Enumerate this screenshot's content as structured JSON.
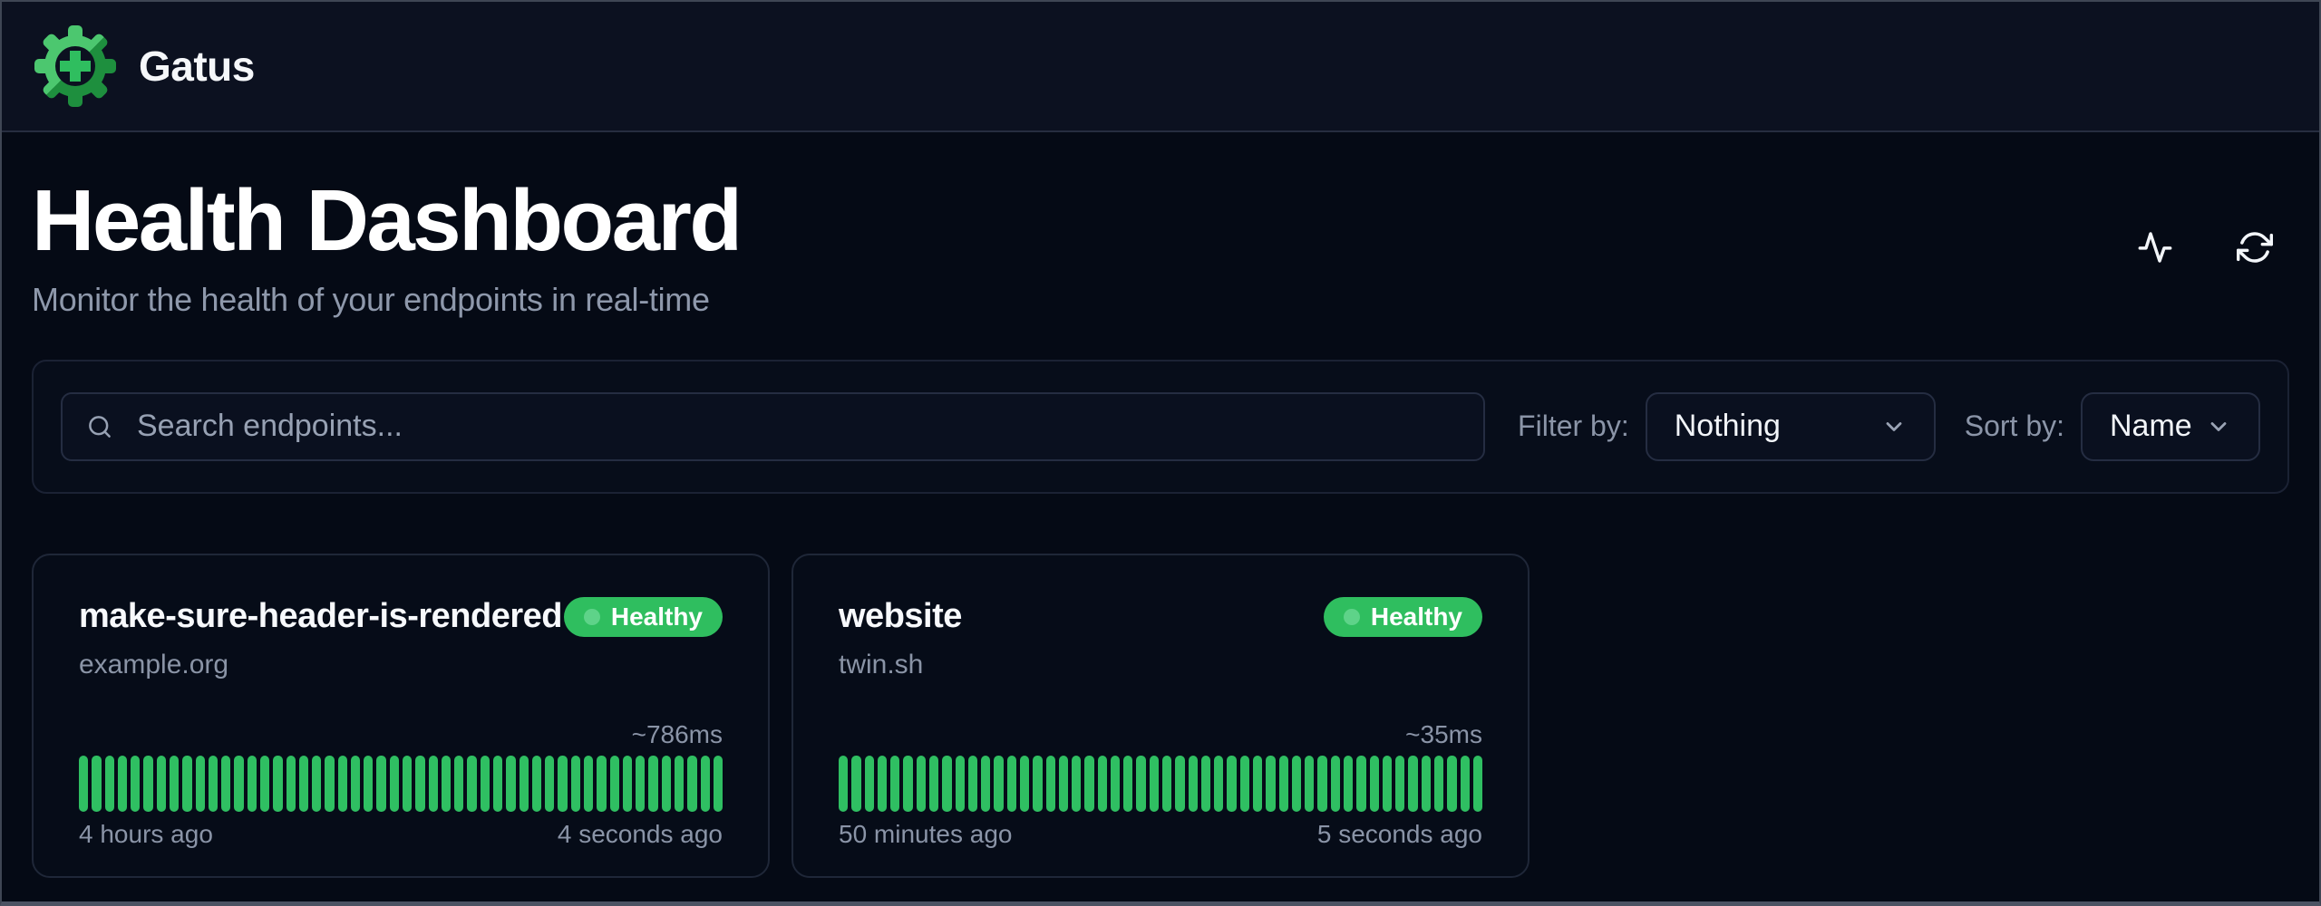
{
  "app": {
    "name": "Gatus"
  },
  "page": {
    "title": "Health Dashboard",
    "subtitle": "Monitor the health of your endpoints in real-time"
  },
  "toolbar": {
    "search_placeholder": "Search endpoints...",
    "filter_label": "Filter by:",
    "filter_value": "Nothing",
    "sort_label": "Sort by:",
    "sort_value": "Name"
  },
  "icons": {
    "logo": "gatus-gear-logo",
    "header_action_1": "activity-pulse-icon",
    "header_action_2": "refresh-icon",
    "search": "search-icon",
    "dropdown": "chevron-down-icon"
  },
  "colors": {
    "background": "#050A15",
    "header_background": "#0C1120",
    "healthy_green": "#2FBE5F",
    "bar_green": "#2FBF62",
    "badge_dot_green": "#5ED389",
    "muted_text": "#8E98AB",
    "logo_light_green": "#4CC76F",
    "logo_dark_green": "#1E8F3E"
  },
  "endpoints": [
    {
      "name": "make-sure-header-is-rendered",
      "host": "example.org",
      "status_label": "Healthy",
      "avg_response_time": "~786ms",
      "window_start_label": "4 hours ago",
      "window_end_label": "4 seconds ago",
      "bar_count": 50
    },
    {
      "name": "website",
      "host": "twin.sh",
      "status_label": "Healthy",
      "avg_response_time": "~35ms",
      "window_start_label": "50 minutes ago",
      "window_end_label": "5 seconds ago",
      "bar_count": 50
    }
  ]
}
